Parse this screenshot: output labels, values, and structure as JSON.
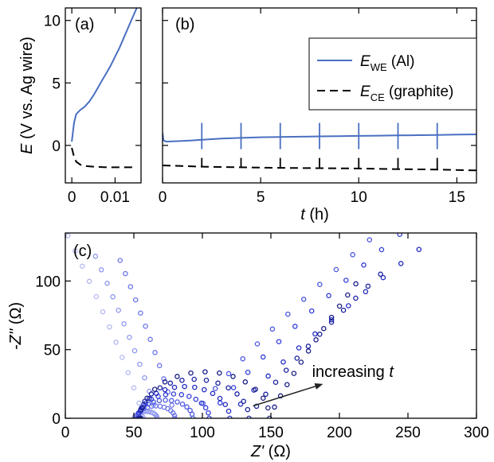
{
  "chart_data": [
    {
      "panel": "(a)",
      "type": "line",
      "ylabel_var": "E",
      "ylabel_unit": "(V vs. Ag wire)",
      "xlim": [
        -0.0015,
        0.016
      ],
      "ylim": [
        -3,
        11
      ],
      "xticks": [
        {
          "v": 0,
          "label": "0"
        },
        {
          "v": 0.01,
          "label": "0.01"
        }
      ],
      "yticks": [
        {
          "v": 0,
          "label": "0"
        },
        {
          "v": 5,
          "label": "5"
        },
        {
          "v": 10,
          "label": "10"
        }
      ],
      "series": [
        {
          "key": "we",
          "color": "#4a6fc1",
          "dash": false,
          "x": [
            0,
            0.0005,
            0.001,
            0.002,
            0.003,
            0.004,
            0.005,
            0.006,
            0.007,
            0.008,
            0.009,
            0.01,
            0.011,
            0.012,
            0.013,
            0.014,
            0.015
          ],
          "y": [
            0.3,
            1.8,
            2.5,
            2.85,
            3.1,
            3.5,
            4.0,
            4.6,
            5.2,
            5.8,
            6.4,
            7.1,
            7.8,
            8.6,
            9.4,
            10.2,
            11.0
          ]
        },
        {
          "key": "ce",
          "color": "#000000",
          "dash": true,
          "x": [
            0,
            0.0005,
            0.001,
            0.002,
            0.003,
            0.005,
            0.008,
            0.011,
            0.015
          ],
          "y": [
            -0.2,
            -0.9,
            -1.3,
            -1.55,
            -1.65,
            -1.7,
            -1.75,
            -1.75,
            -1.75
          ]
        }
      ]
    },
    {
      "panel": "(b)",
      "type": "line",
      "xlabel_var": "t",
      "xlabel_unit": "(h)",
      "xlim": [
        0,
        16
      ],
      "ylim": [
        -3,
        11
      ],
      "xticks": [
        {
          "v": 0,
          "label": "0"
        },
        {
          "v": 5,
          "label": "5"
        },
        {
          "v": 10,
          "label": "10"
        },
        {
          "v": 15,
          "label": "15"
        }
      ],
      "legend": {
        "position": "top-right",
        "entries": [
          {
            "key": "we",
            "sym": "E",
            "sub": "WE",
            "rest": " (Al)"
          },
          {
            "key": "ce",
            "sym": "E",
            "sub": "CE",
            "rest": " (graphite)"
          }
        ]
      },
      "series": [
        {
          "key": "we",
          "color": "#4a6fc1",
          "dash": false,
          "x": [
            0,
            0.05,
            0.2,
            0.5,
            1,
            1.5,
            2,
            3,
            4,
            5,
            6,
            7,
            8,
            9,
            10,
            11,
            12,
            13,
            14,
            15,
            16
          ],
          "y": [
            1.0,
            0.4,
            0.3,
            0.32,
            0.36,
            0.4,
            0.45,
            0.55,
            0.6,
            0.65,
            0.68,
            0.7,
            0.72,
            0.74,
            0.76,
            0.78,
            0.8,
            0.82,
            0.84,
            0.86,
            0.88
          ],
          "spikes": [
            2,
            4,
            6,
            8,
            10,
            12,
            14
          ],
          "spike_low": -0.3,
          "spike_high": 1.8
        },
        {
          "key": "ce",
          "color": "#000000",
          "dash": true,
          "x": [
            0,
            1,
            2,
            4,
            6,
            8,
            10,
            12,
            14,
            16
          ],
          "y": [
            -1.6,
            -1.65,
            -1.7,
            -1.75,
            -1.8,
            -1.82,
            -1.85,
            -1.9,
            -1.93,
            -2.0
          ],
          "spikes": [
            2,
            4,
            6,
            8,
            10,
            12,
            14
          ],
          "spike_high": -1.0
        }
      ]
    },
    {
      "panel": "(c)",
      "type": "scatter",
      "xlabel_var": "Z'",
      "xlabel_unit": "(Ω)",
      "ylabel_var": "-Z''",
      "ylabel_unit": "(Ω)",
      "xlim": [
        0,
        300
      ],
      "ylim": [
        0,
        135
      ],
      "xticks": [
        {
          "v": 0,
          "label": "0"
        },
        {
          "v": 50,
          "label": "50"
        },
        {
          "v": 100,
          "label": "100"
        },
        {
          "v": 150,
          "label": "150"
        },
        {
          "v": 200,
          "label": "200"
        },
        {
          "v": 250,
          "label": "250"
        },
        {
          "v": 300,
          "label": "300"
        }
      ],
      "yticks": [
        {
          "v": 0,
          "label": "0"
        },
        {
          "v": 50,
          "label": "50"
        },
        {
          "v": 100,
          "label": "100"
        }
      ],
      "annotation": {
        "text_prefix": "increasing ",
        "text_var": "t",
        "arrow_from": [
          137,
          9
        ],
        "arrow_to": [
          188,
          25
        ],
        "text_at": [
          180,
          30
        ]
      },
      "series": [
        {
          "color": "#b3b8f2",
          "R": 50,
          "r": 3.5,
          "k": 0.6,
          "tail_to": [
            2,
            133
          ]
        },
        {
          "color": "#8f97ee",
          "R": 51,
          "r": 8,
          "k": 0.62,
          "tail_to": [
            22,
            118
          ]
        },
        {
          "color": "#6c75e8",
          "R": 52,
          "r": 14,
          "k": 0.64,
          "tail_to": [
            40,
            115
          ]
        },
        {
          "color": "#4b56e0",
          "R": 53,
          "r": 20,
          "k": 0.66,
          "tail_to": [
            222,
            130
          ]
        },
        {
          "color": "#2f3ad6",
          "R": 53,
          "r": 26,
          "k": 0.68,
          "tail_to": [
            244,
            134
          ]
        },
        {
          "color": "#1f28bd",
          "R": 54,
          "r": 33,
          "k": 0.7,
          "tail_to": [
            258,
            123
          ]
        },
        {
          "color": "#181f9e",
          "R": 54,
          "r": 40,
          "k": 0.71,
          "tail_to": [
            230,
            105
          ]
        },
        {
          "color": "#151a80",
          "R": 55,
          "r": 47,
          "k": 0.72,
          "tail_to": [
            212,
            98
          ]
        }
      ]
    }
  ]
}
